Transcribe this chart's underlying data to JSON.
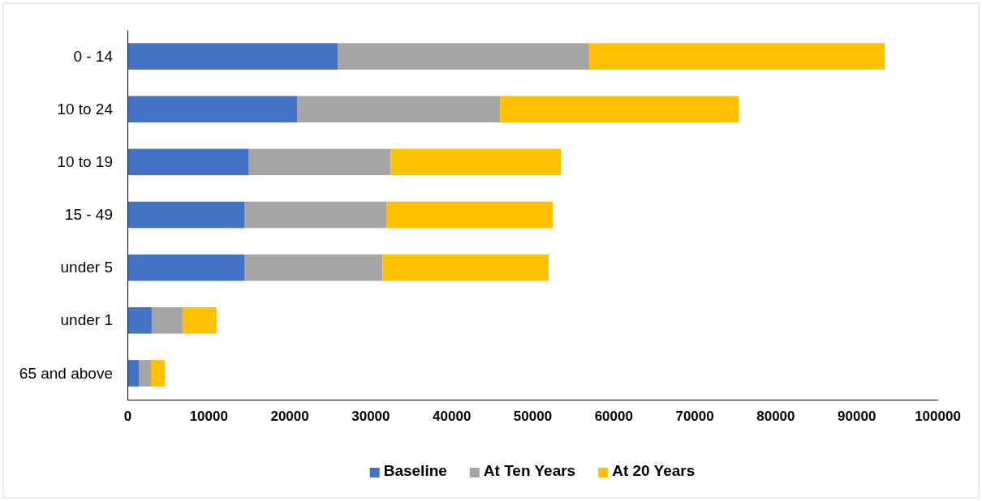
{
  "chart_data": {
    "type": "bar",
    "orientation": "horizontal",
    "stacked": true,
    "categories": [
      "0 - 14",
      "10 to 24",
      "10 to 19",
      "15 - 49",
      "under 5",
      "under 1",
      "65 and above"
    ],
    "series": [
      {
        "name": "Baseline",
        "color": "#4472c4",
        "values": [
          26000,
          21000,
          15000,
          14500,
          14500,
          3000,
          1400
        ]
      },
      {
        "name": "At Ten Years",
        "color": "#a5a5a5",
        "values": [
          31000,
          25000,
          17500,
          17500,
          17000,
          3800,
          1500
        ]
      },
      {
        "name": "At 20 Years",
        "color": "#ffc000",
        "values": [
          36500,
          29500,
          21000,
          20500,
          20500,
          4200,
          1700
        ]
      }
    ],
    "xlim": [
      0,
      100000
    ],
    "xticks": [
      0,
      10000,
      20000,
      30000,
      40000,
      50000,
      60000,
      70000,
      80000,
      90000,
      100000
    ],
    "legend": "bottom",
    "grid": false
  }
}
